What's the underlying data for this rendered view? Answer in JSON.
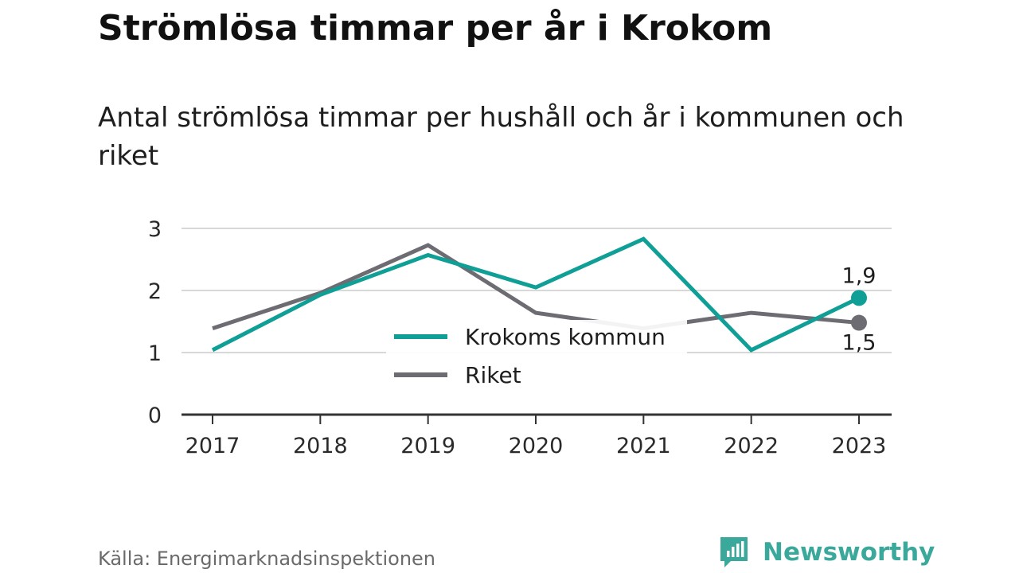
{
  "title": "Strömlösa timmar per år i Krokom",
  "subtitle": "Antal strömlösa timmar per hushåll och år i kommunen och riket",
  "source": "Källa: Energimarknadsinspektionen",
  "brand": {
    "name": "Newsworthy",
    "icon": "newsworthy-logo-icon"
  },
  "colors": {
    "krokom": "#0f9f96",
    "riket": "#6d6c72",
    "grid": "#d8d8d8",
    "axis": "#333333",
    "brand": "#3aa99b"
  },
  "chart_data": {
    "type": "line",
    "x": [
      "2017",
      "2018",
      "2019",
      "2020",
      "2021",
      "2022",
      "2023"
    ],
    "ylim": [
      0,
      3
    ],
    "yticks": [
      "0",
      "1",
      "2",
      "3"
    ],
    "grid": true,
    "legend_position": "center",
    "series": [
      {
        "name": "Krokoms kommun",
        "values": [
          1.04,
          1.93,
          2.57,
          2.05,
          2.83,
          1.04,
          1.88
        ],
        "end_label": "1,9"
      },
      {
        "name": "Riket",
        "values": [
          1.39,
          1.96,
          2.73,
          1.64,
          1.39,
          1.64,
          1.48
        ],
        "end_label": "1,5"
      }
    ]
  }
}
